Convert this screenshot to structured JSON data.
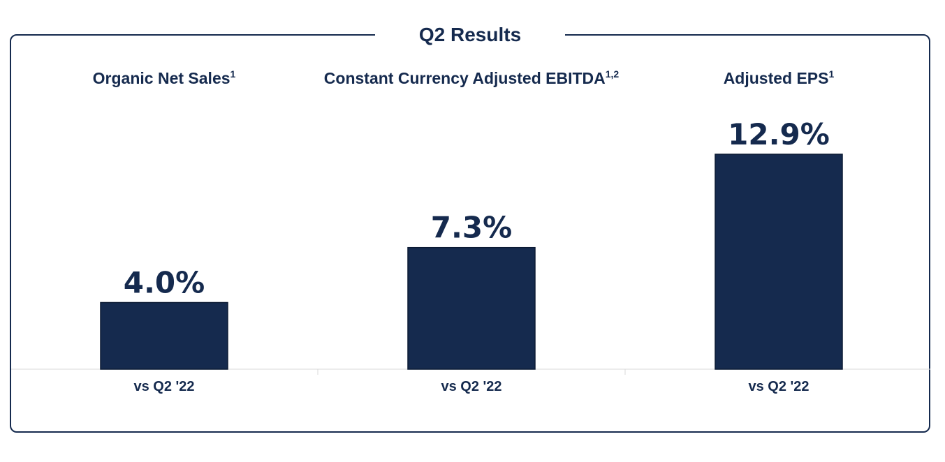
{
  "title": "Q2 Results",
  "colors": {
    "bar": "#152a4e",
    "text": "#152a4e",
    "frame": "#152a4e",
    "baseline": "#d9d9d9"
  },
  "chart_data": {
    "type": "bar",
    "title": "Q2 Results",
    "categories": [
      "Organic Net Sales",
      "Constant Currency Adjusted EBITDA",
      "Adjusted EPS"
    ],
    "category_superscripts": [
      "1",
      "1,2",
      "1"
    ],
    "values": [
      4.0,
      7.3,
      12.9
    ],
    "value_labels": [
      "4.0%",
      "7.3%",
      "12.9%"
    ],
    "x_tick_labels": [
      "vs Q2 '22",
      "vs Q2 '22",
      "vs Q2 '22"
    ],
    "unit": "%",
    "ylim": [
      0,
      12.9
    ],
    "grid": false,
    "legend": "none"
  }
}
